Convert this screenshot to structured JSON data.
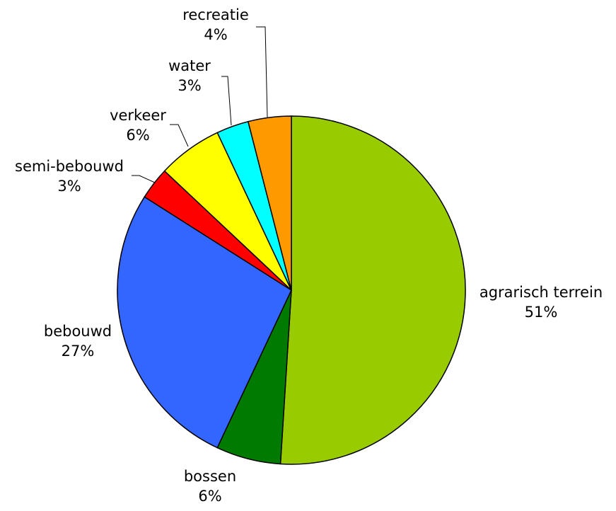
{
  "chart_data": {
    "type": "pie",
    "title": "",
    "start": "12 o'clock",
    "direction": "clockwise",
    "slices": [
      {
        "name": "agrarisch terrein",
        "value": 51,
        "label": "51%",
        "color": "#99CC00"
      },
      {
        "name": "bossen",
        "value": 6,
        "label": "6%",
        "color": "#007A00"
      },
      {
        "name": "bebouwd",
        "value": 27,
        "label": "27%",
        "color": "#3366FF"
      },
      {
        "name": "semi-bebouwd",
        "value": 3,
        "label": "3%",
        "color": "#FF0000"
      },
      {
        "name": "verkeer",
        "value": 6,
        "label": "6%",
        "color": "#FFFF00"
      },
      {
        "name": "water",
        "value": 3,
        "label": "3%",
        "color": "#00FFFF"
      },
      {
        "name": "recreatie",
        "value": 4,
        "label": "4%",
        "color": "#FF9900"
      }
    ]
  }
}
